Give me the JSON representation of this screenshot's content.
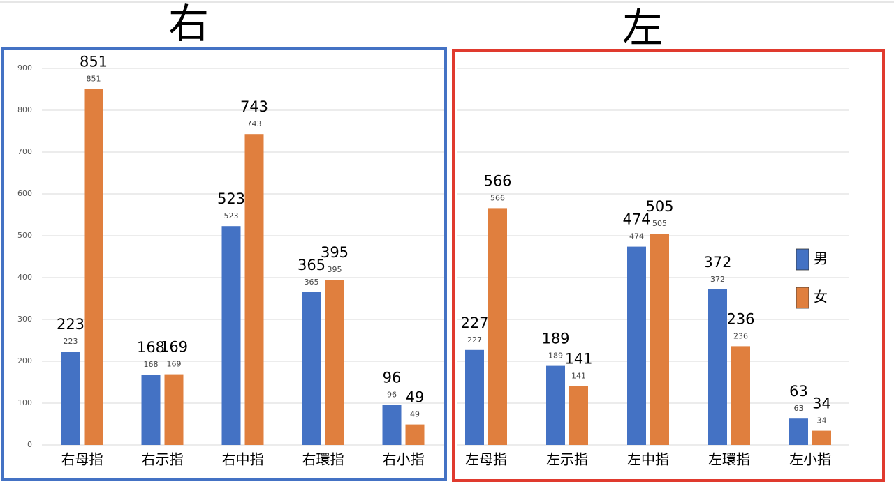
{
  "chart_data": [
    {
      "type": "bar",
      "title": "右",
      "border_color": "#4472c4",
      "categories": [
        "右母指",
        "右示指",
        "右中指",
        "右環指",
        "右小指"
      ],
      "series": [
        {
          "name": "男",
          "color": "#4472c4",
          "values": [
            223,
            168,
            523,
            365,
            96
          ]
        },
        {
          "name": "女",
          "color": "#e07f3e",
          "values": [
            851,
            169,
            743,
            395,
            49
          ]
        }
      ],
      "ylim": [
        0,
        900
      ],
      "yticks": [
        0,
        100,
        200,
        300,
        400,
        500,
        600,
        700,
        800,
        900
      ],
      "y_tick_labels": true,
      "grid": true,
      "legend": false
    },
    {
      "type": "bar",
      "title": "左",
      "border_color": "#e03a2e",
      "categories": [
        "左母指",
        "左示指",
        "左中指",
        "左環指",
        "左小指"
      ],
      "series": [
        {
          "name": "男",
          "color": "#4472c4",
          "values": [
            227,
            189,
            474,
            372,
            63
          ]
        },
        {
          "name": "女",
          "color": "#e07f3e",
          "values": [
            566,
            141,
            505,
            236,
            34
          ]
        }
      ],
      "ylim": [
        0,
        900
      ],
      "yticks": [
        0,
        100,
        200,
        300,
        400,
        500,
        600,
        700,
        800,
        900
      ],
      "y_tick_labels": false,
      "grid": true,
      "legend": "right"
    }
  ]
}
